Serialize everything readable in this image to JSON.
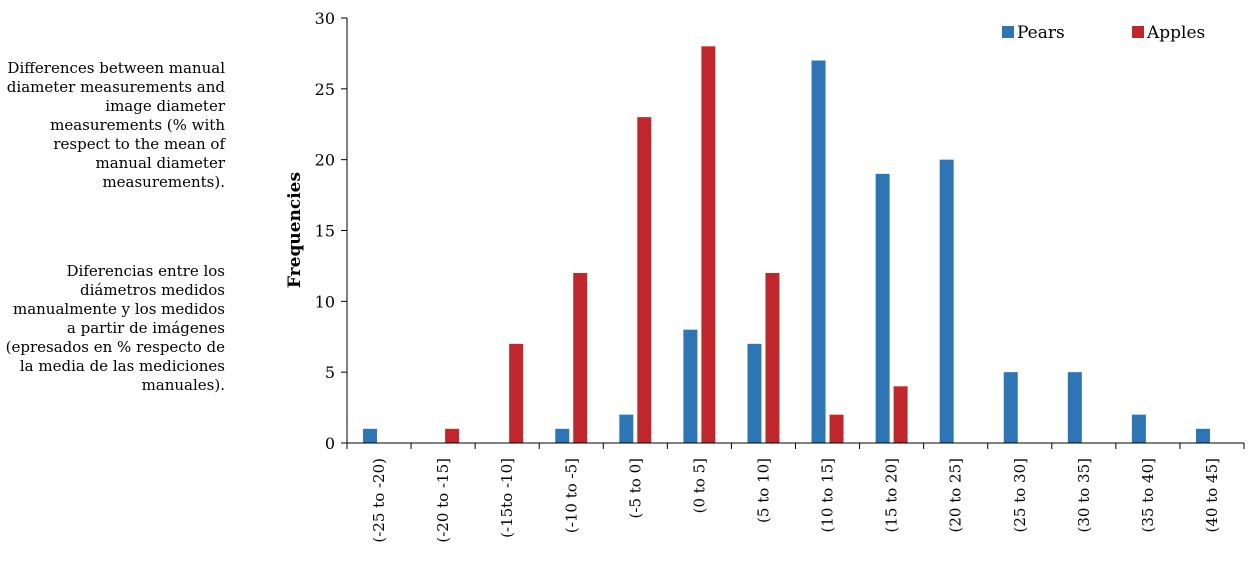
{
  "caption": {
    "english": "Differences between manual diameter measurements and image diameter measurements (% with respect to the mean of manual diameter measurements).",
    "spanish": "Diferencias entre los diámetros medidos manualmente y los medidos a partir de imágenes (epresados en % respecto de la media de las mediciones manuales)."
  },
  "chart_data": {
    "type": "bar",
    "title": "",
    "xlabel": "",
    "ylabel": "Frequencies",
    "ylim": [
      0,
      30
    ],
    "yticks": [
      0,
      5,
      10,
      15,
      20,
      25,
      30
    ],
    "grid": false,
    "legend_position": "top-right",
    "categories": [
      "(-25 to -20)",
      "(-20 to -15]",
      "(-15to -10]",
      "(-10 to -5]",
      "(-5 to 0]",
      "(0 to 5]",
      "(5 to 10]",
      "(10 to 15]",
      "(15 to 20]",
      "(20 to 25]",
      "(25 to 30]",
      "(30 to 35]",
      "(35 to 40]",
      "(40 to 45]"
    ],
    "series": [
      {
        "name": "Pears",
        "color": "#2E75B6",
        "values": [
          1,
          0,
          0,
          1,
          2,
          8,
          7,
          27,
          19,
          20,
          5,
          5,
          2,
          1
        ]
      },
      {
        "name": "Apples",
        "color": "#C0272D",
        "values": [
          0,
          1,
          7,
          12,
          23,
          28,
          12,
          2,
          4,
          0,
          0,
          0,
          0,
          0
        ]
      }
    ]
  }
}
